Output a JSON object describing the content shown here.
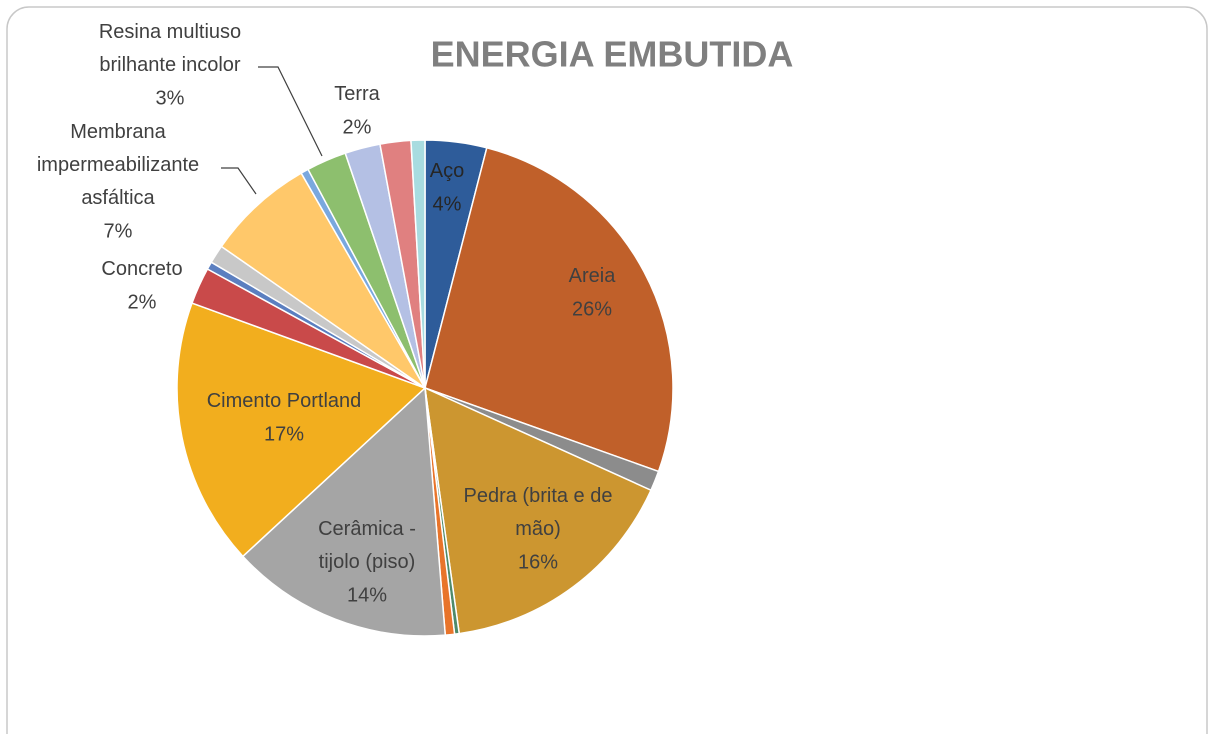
{
  "chart_data": {
    "type": "pie",
    "title": "ENERGIA EMBUTIDA",
    "categories": [
      "Aço",
      "Areia",
      null,
      "Pedra (brita e de mão)",
      null,
      null,
      "Cerâmica - tijolo (piso)",
      "Cimento Portland",
      "Concreto",
      null,
      null,
      "Membrana impermeabilizante asfáltica",
      null,
      "Resina multiuso brilhante incolor",
      null,
      "Terra",
      null
    ],
    "values": [
      4,
      26.4,
      1.3,
      16,
      0.3,
      0.6,
      14.4,
      17.4,
      2.4,
      0.5,
      1.2,
      7,
      0.5,
      2.6,
      2.3,
      2,
      0.9
    ],
    "value_labels": [
      "4%",
      "26%",
      null,
      "16%",
      null,
      null,
      "14%",
      "17%",
      "2%",
      null,
      null,
      "7%",
      null,
      "3%",
      null,
      "2%",
      null
    ],
    "colors": [
      "#2E5C9A",
      "#C0602A",
      "#8C8C8C",
      "#CC9630",
      "#4E8A6A",
      "#E8742A",
      "#A5A5A5",
      "#F2AE1E",
      "#C94A4A",
      "#5B7FC0",
      "#C8C8C8",
      "#FFC86A",
      "#7AA8DE",
      "#8DBF6E",
      "#B4C0E4",
      "#E08080",
      "#A8DCE0"
    ]
  }
}
